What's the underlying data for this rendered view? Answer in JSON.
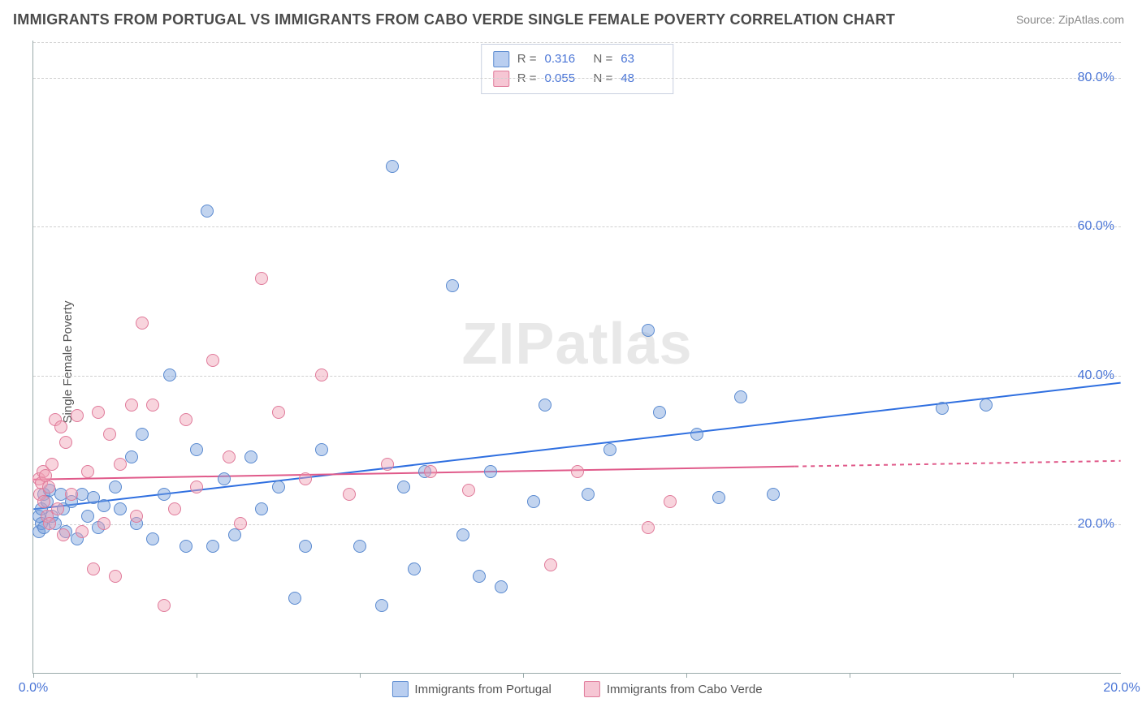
{
  "title": "IMMIGRANTS FROM PORTUGAL VS IMMIGRANTS FROM CABO VERDE SINGLE FEMALE POVERTY CORRELATION CHART",
  "source": "Source: ZipAtlas.com",
  "ylabel": "Single Female Poverty",
  "watermark": "ZIPatlas",
  "chart": {
    "type": "scatter",
    "xlim": [
      0,
      20
    ],
    "ylim": [
      0,
      85
    ],
    "y_gridlines": [
      20,
      40,
      60,
      80
    ],
    "y_tick_labels": [
      "20.0%",
      "40.0%",
      "60.0%",
      "80.0%"
    ],
    "x_ticks": [
      0,
      3,
      6,
      9,
      12,
      15,
      18
    ],
    "x_tick_labels_shown": {
      "0": "0.0%",
      "20": "20.0%"
    },
    "background_color": "#ffffff",
    "grid_color": "#d0d0d0",
    "axis_color": "#99aaaa",
    "tick_label_color": "#4a75d6",
    "marker_radius": 8,
    "marker_border_width": 1.5,
    "series": [
      {
        "name": "Immigrants from Portugal",
        "fill_color": "rgba(120,160,220,0.45)",
        "stroke_color": "#5a8ad0",
        "swatch_fill": "#b9cef0",
        "swatch_border": "#5a8ad0",
        "R": "0.316",
        "N": "63",
        "trend": {
          "x1": 0,
          "y1": 22,
          "x2": 20,
          "y2": 39,
          "color": "#2f6fe0",
          "width": 2,
          "dash_from_x": null
        },
        "points": [
          [
            0.1,
            19
          ],
          [
            0.1,
            21
          ],
          [
            0.15,
            20
          ],
          [
            0.15,
            22
          ],
          [
            0.2,
            24
          ],
          [
            0.2,
            19.5
          ],
          [
            0.25,
            23
          ],
          [
            0.3,
            24.5
          ],
          [
            0.35,
            21
          ],
          [
            0.4,
            20
          ],
          [
            0.5,
            24
          ],
          [
            0.55,
            22
          ],
          [
            0.6,
            19
          ],
          [
            0.7,
            23
          ],
          [
            0.8,
            18
          ],
          [
            0.9,
            24
          ],
          [
            1.0,
            21
          ],
          [
            1.1,
            23.5
          ],
          [
            1.2,
            19.5
          ],
          [
            1.3,
            22.5
          ],
          [
            1.5,
            25
          ],
          [
            1.6,
            22
          ],
          [
            1.8,
            29
          ],
          [
            1.9,
            20
          ],
          [
            2.0,
            32
          ],
          [
            2.2,
            18
          ],
          [
            2.4,
            24
          ],
          [
            2.5,
            40
          ],
          [
            2.8,
            17
          ],
          [
            3.0,
            30
          ],
          [
            3.2,
            62
          ],
          [
            3.3,
            17
          ],
          [
            3.5,
            26
          ],
          [
            3.7,
            18.5
          ],
          [
            4.0,
            29
          ],
          [
            4.2,
            22
          ],
          [
            4.5,
            25
          ],
          [
            4.8,
            10
          ],
          [
            5.0,
            17
          ],
          [
            5.3,
            30
          ],
          [
            6.0,
            17
          ],
          [
            6.4,
            9
          ],
          [
            6.6,
            68
          ],
          [
            6.8,
            25
          ],
          [
            7.0,
            14
          ],
          [
            7.2,
            27
          ],
          [
            7.7,
            52
          ],
          [
            7.9,
            18.5
          ],
          [
            8.2,
            13
          ],
          [
            8.4,
            27
          ],
          [
            8.6,
            11.5
          ],
          [
            9.2,
            23
          ],
          [
            9.4,
            36
          ],
          [
            10.2,
            24
          ],
          [
            10.6,
            30
          ],
          [
            11.3,
            46
          ],
          [
            11.5,
            35
          ],
          [
            12.2,
            32
          ],
          [
            12.6,
            23.5
          ],
          [
            13.0,
            37
          ],
          [
            13.6,
            24
          ],
          [
            16.7,
            35.5
          ],
          [
            17.5,
            36
          ]
        ]
      },
      {
        "name": "Immigrants from Cabo Verde",
        "fill_color": "rgba(240,160,180,0.45)",
        "stroke_color": "#e07a9a",
        "swatch_fill": "#f6c6d4",
        "swatch_border": "#e07a9a",
        "R": "0.055",
        "N": "48",
        "trend": {
          "x1": 0,
          "y1": 26,
          "x2": 20,
          "y2": 28.5,
          "color": "#e05a8a",
          "width": 2,
          "dash_from_x": 14
        },
        "points": [
          [
            0.1,
            26
          ],
          [
            0.12,
            24
          ],
          [
            0.15,
            25.5
          ],
          [
            0.18,
            27
          ],
          [
            0.2,
            23
          ],
          [
            0.22,
            26.5
          ],
          [
            0.25,
            21
          ],
          [
            0.28,
            25
          ],
          [
            0.3,
            20
          ],
          [
            0.35,
            28
          ],
          [
            0.4,
            34
          ],
          [
            0.45,
            22
          ],
          [
            0.5,
            33
          ],
          [
            0.55,
            18.5
          ],
          [
            0.6,
            31
          ],
          [
            0.7,
            24
          ],
          [
            0.8,
            34.5
          ],
          [
            0.9,
            19
          ],
          [
            1.0,
            27
          ],
          [
            1.1,
            14
          ],
          [
            1.2,
            35
          ],
          [
            1.3,
            20
          ],
          [
            1.4,
            32
          ],
          [
            1.5,
            13
          ],
          [
            1.6,
            28
          ],
          [
            1.8,
            36
          ],
          [
            1.9,
            21
          ],
          [
            2.0,
            47
          ],
          [
            2.2,
            36
          ],
          [
            2.4,
            9
          ],
          [
            2.6,
            22
          ],
          [
            2.8,
            34
          ],
          [
            3.0,
            25
          ],
          [
            3.3,
            42
          ],
          [
            3.6,
            29
          ],
          [
            3.8,
            20
          ],
          [
            4.2,
            53
          ],
          [
            4.5,
            35
          ],
          [
            5.0,
            26
          ],
          [
            5.3,
            40
          ],
          [
            5.8,
            24
          ],
          [
            6.5,
            28
          ],
          [
            7.3,
            27
          ],
          [
            8.0,
            24.5
          ],
          [
            9.5,
            14.5
          ],
          [
            10.0,
            27
          ],
          [
            11.3,
            19.5
          ],
          [
            11.7,
            23
          ]
        ]
      }
    ]
  },
  "legend_top": {
    "row_labels": {
      "R": "R  =",
      "N": "N  ="
    }
  },
  "legend_bottom": {
    "items": [
      "Immigrants from Portugal",
      "Immigrants from Cabo Verde"
    ]
  }
}
